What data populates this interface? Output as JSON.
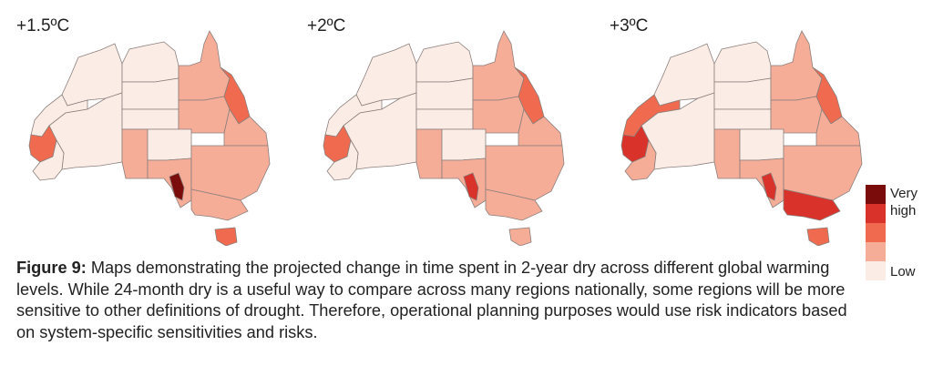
{
  "panels": [
    {
      "title": "+1.5ºC"
    },
    {
      "title": "+2ºC"
    },
    {
      "title": "+3ºC"
    }
  ],
  "legend": {
    "high_label_line1": "Very",
    "high_label_line2": "high",
    "low_label": "Low",
    "levels": [
      {
        "name": "very-high",
        "color": "#7a0c0c"
      },
      {
        "name": "high",
        "color": "#d9322a"
      },
      {
        "name": "moderate-high",
        "color": "#ef6a4e"
      },
      {
        "name": "moderate",
        "color": "#f6ad98"
      },
      {
        "name": "low",
        "color": "#fcece6"
      }
    ]
  },
  "caption": {
    "label": "Figure 9:",
    "text": " Maps demonstrating the projected change in time spent in 2-year dry across different global warming levels. While 24-month dry is a useful way to compare across many regions nationally, some regions will be more sensitive to other definitions of drought. Therefore, operational planning purposes would use risk indicators based on system-specific sensitivities and risks."
  },
  "maps": [
    {
      "warming": "+1.5ºC",
      "regions": {
        "wa_north": "low",
        "wa_central": "low",
        "wa_coast": "low",
        "wa_sw": "moderate-high",
        "wa_south": "low",
        "nt_north": "low",
        "nt_central": "low",
        "nt_south": "low",
        "qld_north": "moderate",
        "qld_coast": "moderate-high",
        "qld_west": "moderate",
        "qld_south": "moderate",
        "sa_west": "moderate",
        "sa_north": "low",
        "sa_east": "moderate",
        "sa_gulf": "very-high",
        "nsw": "moderate",
        "vic": "moderate",
        "tas": "moderate-high"
      }
    },
    {
      "warming": "+2ºC",
      "regions": {
        "wa_north": "low",
        "wa_central": "low",
        "wa_coast": "low",
        "wa_sw": "moderate-high",
        "wa_south": "low",
        "nt_north": "low",
        "nt_central": "low",
        "nt_south": "low",
        "qld_north": "moderate",
        "qld_coast": "moderate-high",
        "qld_west": "moderate",
        "qld_south": "moderate",
        "sa_west": "moderate",
        "sa_north": "low",
        "sa_east": "moderate",
        "sa_gulf": "high",
        "nsw": "moderate",
        "vic": "moderate",
        "tas": "moderate"
      }
    },
    {
      "warming": "+3ºC",
      "regions": {
        "wa_north": "low",
        "wa_central": "low",
        "wa_coast": "moderate-high",
        "wa_sw": "high",
        "wa_south": "moderate",
        "nt_north": "low",
        "nt_central": "low",
        "nt_south": "low",
        "qld_north": "moderate",
        "qld_coast": "moderate-high",
        "qld_west": "moderate",
        "qld_south": "moderate",
        "sa_west": "moderate",
        "sa_north": "low",
        "sa_east": "moderate",
        "sa_gulf": "high",
        "nsw": "moderate",
        "vic": "high",
        "tas": "moderate-high"
      }
    }
  ]
}
